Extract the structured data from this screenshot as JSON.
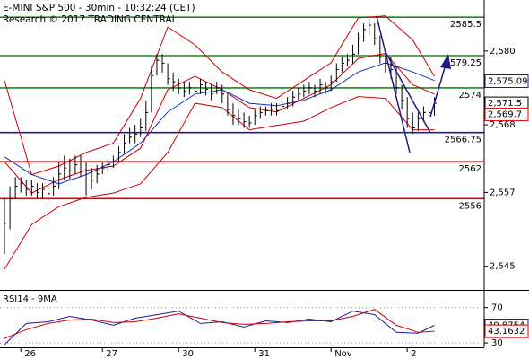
{
  "chart_data": [
    {
      "type": "ohlc",
      "title": "E-MINI S&P 500 - 30min - 10:32:24 (CET)",
      "subtitle": "Research © 2017 TRADING CENTRAL",
      "categories": [
        null,
        null,
        null,
        "26",
        null,
        null,
        null,
        null,
        null,
        null,
        null,
        null,
        null,
        null,
        null,
        null,
        null,
        null,
        "27",
        null,
        null,
        null,
        null,
        null,
        null,
        null,
        null,
        null,
        null,
        null,
        null,
        null,
        "30",
        null,
        null,
        null,
        null,
        null,
        null,
        null,
        null,
        null,
        null,
        null,
        null,
        null,
        "31",
        null,
        null,
        null,
        null,
        null,
        null,
        null,
        null,
        null,
        null,
        null,
        null,
        null,
        "Nov",
        null,
        null,
        null,
        null,
        null,
        null,
        null,
        null,
        null,
        null,
        null,
        null,
        null,
        "2",
        null,
        null,
        null,
        null,
        null
      ],
      "high": [
        2556,
        2558,
        2559.5,
        2559.5,
        2559,
        2559,
        2558.5,
        2558.5,
        2558,
        2559.5,
        2562,
        2563,
        2562.5,
        2563,
        2563,
        2562,
        2561,
        2561.5,
        2562,
        2562.5,
        2563,
        2564.5,
        2566.5,
        2567.5,
        2568,
        2569,
        2572,
        2577.5,
        2579.5,
        2579.5,
        2578,
        2576.5,
        2575.5,
        2575,
        2575,
        2574.5,
        2575.5,
        2575,
        2574.5,
        2575,
        2574.5,
        2573,
        2571.5,
        2570.5,
        2570,
        2569.5,
        2570.5,
        2571,
        2571,
        2571.5,
        2571.5,
        2572,
        2572.5,
        2573.5,
        2574,
        2574.5,
        2575,
        2574.5,
        2575.5,
        2575,
        2576,
        2578,
        2579,
        2579.5,
        2581,
        2583,
        2584.5,
        2585.2,
        2584.5,
        2582.5,
        2580,
        2579,
        2577.5,
        2574.5,
        2572.5,
        2570,
        2570,
        2571,
        2571,
        2572.5
      ],
      "low": [
        2547,
        2551,
        2556,
        2557,
        2556.5,
        2556.5,
        2556,
        2556,
        2555.5,
        2556.5,
        2557.5,
        2559,
        2559,
        2560,
        2559.5,
        2556.5,
        2557.5,
        2558.5,
        2560,
        2560.5,
        2561,
        2562,
        2563.5,
        2565,
        2565,
        2566,
        2567,
        2570,
        2576,
        2576.5,
        2574.5,
        2573.5,
        2573,
        2572.5,
        2573,
        2572.5,
        2573,
        2572.8,
        2572,
        2573,
        2571.5,
        2569.5,
        2568,
        2568,
        2567.5,
        2567.5,
        2568,
        2569,
        2569.5,
        2569.5,
        2569.5,
        2570,
        2570.5,
        2571,
        2572,
        2572.5,
        2573,
        2572.5,
        2573,
        2573,
        2573.5,
        2575,
        2576.5,
        2577.5,
        2578,
        2579.5,
        2581.5,
        2582.5,
        2581,
        2578,
        2576.5,
        2575.5,
        2573,
        2570.5,
        2567.5,
        2566.5,
        2567,
        2568.5,
        2569,
        2569.5
      ],
      "close": [
        2552,
        2556,
        2558,
        2558.5,
        2557.5,
        2558,
        2557,
        2557.5,
        2556.8,
        2558,
        2560,
        2561,
        2560.5,
        2561.5,
        2562,
        2560.5,
        2559,
        2560,
        2561,
        2561.5,
        2562,
        2563.5,
        2565,
        2566,
        2566.5,
        2567.5,
        2570,
        2576,
        2578.5,
        2578,
        2575.5,
        2575,
        2574,
        2573.5,
        2574,
        2573.5,
        2574.5,
        2573.8,
        2573,
        2574,
        2573,
        2570.5,
        2569.5,
        2569,
        2568.5,
        2568.3,
        2569.5,
        2570,
        2570.3,
        2570.5,
        2570.3,
        2571,
        2571.5,
        2572.5,
        2573,
        2573.5,
        2574,
        2573.5,
        2574.5,
        2574,
        2575,
        2577,
        2578,
        2578.5,
        2579.5,
        2582,
        2583.5,
        2584.2,
        2582,
        2579,
        2578,
        2577,
        2574,
        2572,
        2569,
        2567.5,
        2569,
        2570,
        2570,
        2571.5
      ],
      "color": "#000000",
      "lines": [
        {
          "color": "#cc0000",
          "x": [
            0,
            5,
            10,
            15,
            20,
            25,
            30,
            35,
            40,
            45,
            50,
            55,
            60,
            65,
            70,
            75,
            79
          ],
          "values": [
            2575.2,
            2559.9,
            2561.3,
            2563.5,
            2565,
            2572.3,
            2583.9,
            2581,
            2576.6,
            2573.7,
            2572.3,
            2575.2,
            2578.1,
            2585.4,
            2585.7,
            2581.8,
            2575.9
          ]
        },
        {
          "color": "#cc0000",
          "x": [
            0,
            5,
            10,
            15,
            20,
            25,
            30,
            35,
            40,
            45,
            50,
            55,
            60,
            65,
            70,
            75,
            79
          ],
          "values": [
            2544.5,
            2551.8,
            2554.7,
            2556.2,
            2556.9,
            2558.4,
            2563.5,
            2571.5,
            2570.8,
            2567.2,
            2567.9,
            2568.6,
            2570.8,
            2572.6,
            2572.3,
            2567.2,
            2567.2
          ]
        },
        {
          "color": "#cc0000",
          "x": [
            0,
            5,
            10,
            15,
            20,
            25,
            30,
            35,
            40,
            45,
            50,
            55,
            60,
            65,
            70,
            75,
            79
          ],
          "values": [
            2562,
            2556.9,
            2559.1,
            2560.6,
            2561.3,
            2564.2,
            2573.7,
            2575.9,
            2573.7,
            2570.8,
            2570.1,
            2572.3,
            2574.5,
            2578.8,
            2579.6,
            2574.5,
            2573
          ]
        },
        {
          "color": "#1030c0",
          "x": [
            0,
            5,
            10,
            15,
            20,
            25,
            30,
            35,
            40,
            45,
            50,
            55,
            60,
            65,
            70,
            75,
            79
          ],
          "values": [
            2562.8,
            2559.9,
            2558.4,
            2559.9,
            2562,
            2565,
            2570.1,
            2573,
            2573.7,
            2571.5,
            2571.1,
            2572,
            2573.7,
            2576.6,
            2578.1,
            2576.6,
            2575.2
          ]
        }
      ],
      "levels": [
        {
          "value": 2585.5,
          "color": "#1a8c1a"
        },
        {
          "value": 2579.25,
          "color": "#1a8c1a"
        },
        {
          "value": 2574,
          "color": "#1a8c1a"
        },
        {
          "value": 2566.75,
          "color": "#1a1aa0"
        },
        {
          "value": 2562,
          "color": "#e00000"
        },
        {
          "value": 2556,
          "color": "#e00000"
        }
      ],
      "price_tags": [
        {
          "value": 2575.09,
          "label": "2,575.09",
          "color": "#1a1aa0"
        },
        {
          "value": 2571.5,
          "label": "2,571.5",
          "color": "#000000"
        },
        {
          "value": 2569.7,
          "label": "2,569.7",
          "color": "#e00000"
        }
      ],
      "ylim": [
        2541.3,
        2588.3
      ],
      "yticks": [
        {
          "value": 2580,
          "label": "2,580"
        },
        {
          "value": 2568,
          "label": "2,568"
        },
        {
          "value": 2557,
          "label": "2,557"
        },
        {
          "value": 2545,
          "label": "2,545"
        }
      ],
      "grid": false
    },
    {
      "type": "line",
      "title": "RSI14 - 9MA",
      "series": [
        {
          "color": "#1a1aa0",
          "x": [
            0,
            4,
            8,
            12,
            16,
            20,
            24,
            28,
            32,
            36,
            40,
            44,
            48,
            52,
            56,
            60,
            64,
            68,
            72,
            76,
            79
          ],
          "values": [
            28,
            52,
            54,
            60,
            56,
            50,
            58,
            62,
            66,
            52,
            54,
            48,
            55,
            53,
            57,
            54,
            66,
            62,
            42,
            41,
            49.8754
          ]
        },
        {
          "color": "#cc0000",
          "x": [
            0,
            4,
            8,
            12,
            16,
            20,
            24,
            28,
            32,
            36,
            40,
            44,
            48,
            52,
            56,
            60,
            64,
            68,
            72,
            76,
            79
          ],
          "values": [
            35,
            45,
            52,
            56,
            57,
            53,
            54,
            58,
            63,
            58,
            53,
            51,
            52,
            54,
            55,
            55,
            60,
            68,
            50,
            42,
            43.1632
          ]
        }
      ],
      "value_tags": [
        {
          "value": 49.8754,
          "color": "#1a1aa0"
        },
        {
          "value": 43.1632,
          "color": "#e00000"
        }
      ],
      "ylim": [
        26,
        88
      ],
      "yticks": [
        70,
        30
      ],
      "grid": true
    }
  ]
}
